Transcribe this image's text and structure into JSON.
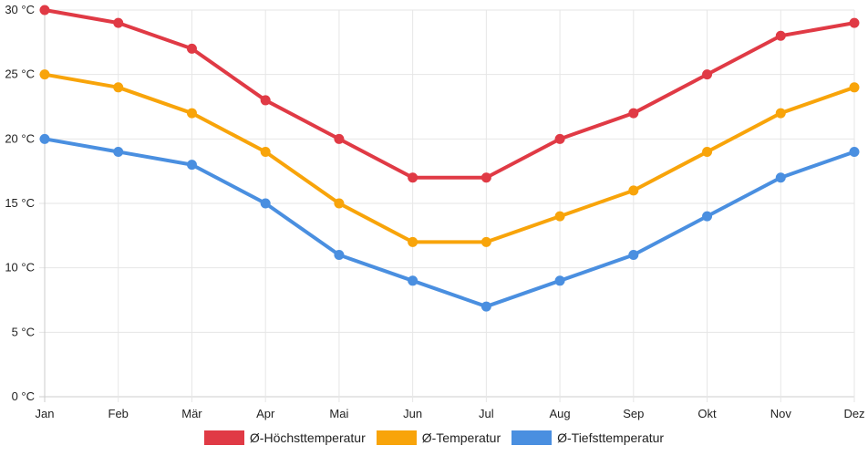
{
  "chart_data": {
    "type": "line",
    "title": "",
    "xlabel": "",
    "ylabel": "",
    "categories": [
      "Jan",
      "Feb",
      "Mär",
      "Apr",
      "Mai",
      "Jun",
      "Jul",
      "Aug",
      "Sep",
      "Okt",
      "Nov",
      "Dez"
    ],
    "y_ticks": [
      "0 °C",
      "5 °C",
      "10 °C",
      "15 °C",
      "20 °C",
      "25 °C",
      "30 °C"
    ],
    "ylim": [
      0,
      30
    ],
    "grid": true,
    "legend_position": "bottom",
    "series": [
      {
        "name": "Ø-Höchsttemperatur",
        "color": "#e03a45",
        "values": [
          30,
          29,
          27,
          23,
          20,
          17,
          17,
          20,
          22,
          25,
          28,
          29
        ]
      },
      {
        "name": "Ø-Temperatur",
        "color": "#f8a40a",
        "values": [
          25,
          24,
          22,
          19,
          15,
          12,
          12,
          14,
          16,
          19,
          22,
          24
        ]
      },
      {
        "name": "Ø-Tiefsttemperatur",
        "color": "#4a8fe0",
        "values": [
          20,
          19,
          18,
          15,
          11,
          9,
          7,
          9,
          11,
          14,
          17,
          19
        ]
      }
    ]
  }
}
